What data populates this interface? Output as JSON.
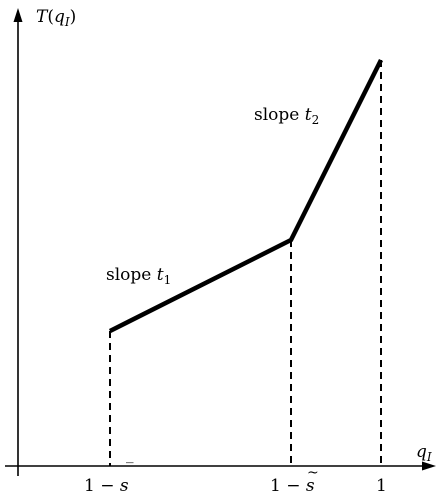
{
  "axes": {
    "y_label_fn": "T",
    "y_label_open": "(",
    "y_label_var": "q",
    "y_label_sub": "I",
    "y_label_close": ")",
    "x_label_var": "q",
    "x_label_sub": "I"
  },
  "ticks": {
    "t1_prefix": "1 − ",
    "t1_var": "s",
    "t1_accent": "‾",
    "t2_prefix": "1 − ",
    "t2_var": "s",
    "t2_accent": "~",
    "t3_label": "1"
  },
  "annotations": {
    "slope1_word": "slope ",
    "slope1_var": "t",
    "slope1_sub": "1",
    "slope2_word": "slope ",
    "slope2_var": "t",
    "slope2_sub": "2"
  },
  "colors": {
    "ink": "#000000",
    "background": "#ffffff"
  }
}
